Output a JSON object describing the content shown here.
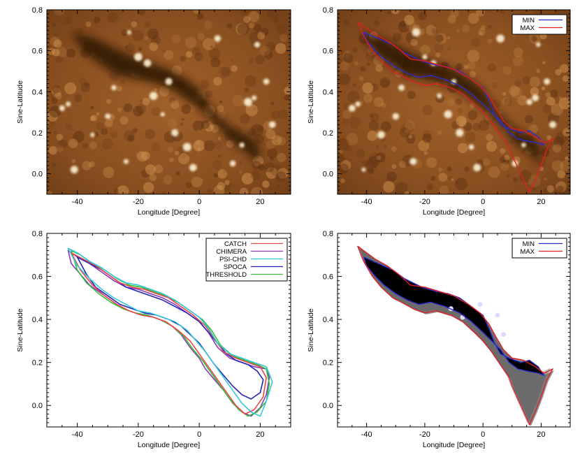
{
  "chart_data": [
    {
      "panel": "top-left",
      "type": "heatmap",
      "title": "",
      "xlabel": "Longitude [Degree]",
      "ylabel": "Sine-Latitude",
      "xlim": [
        -50,
        30
      ],
      "ylim": [
        -0.1,
        0.8
      ],
      "xticks": [
        -40,
        -20,
        0,
        20
      ],
      "xtick_labels": [
        "-40",
        "-20",
        "0",
        "20"
      ],
      "yticks": [
        0.0,
        0.2,
        0.4,
        0.6,
        0.8
      ],
      "ytick_labels": [
        "0.0",
        "0.2",
        "0.4",
        "0.6",
        "0.8"
      ],
      "colormap": "solar EUV (sdoaia193-like brown/orange)",
      "colors": {
        "dark": "#2a1305",
        "mid": "#8a5020",
        "bright": "#ffe7b8"
      },
      "legend": []
    },
    {
      "panel": "top-right",
      "type": "heatmap",
      "title": "",
      "xlabel": "Longitude [Degree]",
      "ylabel": "Sine-Latitude",
      "xlim": [
        -50,
        30
      ],
      "ylim": [
        -0.1,
        0.8
      ],
      "xticks": [
        -40,
        -20,
        0,
        20
      ],
      "xtick_labels": [
        "-40",
        "-20",
        "0",
        "20"
      ],
      "yticks": [
        0.0,
        0.2,
        0.4,
        0.6,
        0.8
      ],
      "ytick_labels": [
        "0.0",
        "0.2",
        "0.4",
        "0.6",
        "0.8"
      ],
      "legend_position": "top-right",
      "legend": [
        {
          "label": "MIN",
          "color": "#2b2bd0"
        },
        {
          "label": "MAX",
          "color": "#e02020"
        }
      ],
      "series": [
        {
          "name": "MIN",
          "color": "#2b2bd0",
          "x": [
            -41,
            -36,
            -31,
            -27,
            -21,
            -16,
            -12,
            -8,
            -4,
            0,
            2,
            4,
            6,
            9,
            13,
            16,
            19,
            21,
            19,
            15,
            12,
            9,
            6,
            3,
            0,
            -4,
            -8,
            -13,
            -18,
            -22,
            -26,
            -30,
            -34,
            -37,
            -40,
            -41
          ],
          "y": [
            0.69,
            0.66,
            0.63,
            0.59,
            0.55,
            0.53,
            0.52,
            0.5,
            0.46,
            0.42,
            0.36,
            0.29,
            0.24,
            0.22,
            0.2,
            0.21,
            0.18,
            0.14,
            0.15,
            0.16,
            0.17,
            0.2,
            0.26,
            0.3,
            0.34,
            0.39,
            0.43,
            0.46,
            0.48,
            0.47,
            0.49,
            0.52,
            0.56,
            0.6,
            0.65,
            0.69
          ]
        },
        {
          "name": "MAX",
          "color": "#e02020",
          "x": [
            -43,
            -40,
            -37,
            -33,
            -29,
            -25,
            -20,
            -15,
            -10,
            -5,
            -1,
            2,
            4,
            7,
            10,
            14,
            18,
            21,
            24,
            22,
            20,
            18,
            16,
            14,
            12,
            10,
            9,
            6,
            3,
            0,
            -3,
            -7,
            -11,
            -16,
            -20,
            -24,
            -28,
            -31,
            -35,
            -38,
            -41,
            -43
          ],
          "y": [
            0.74,
            0.71,
            0.68,
            0.65,
            0.61,
            0.56,
            0.55,
            0.53,
            0.51,
            0.47,
            0.43,
            0.38,
            0.33,
            0.26,
            0.22,
            0.21,
            0.18,
            0.15,
            0.17,
            0.12,
            0.04,
            -0.03,
            -0.09,
            -0.03,
            0.03,
            0.09,
            0.13,
            0.19,
            0.25,
            0.3,
            0.34,
            0.39,
            0.42,
            0.44,
            0.43,
            0.45,
            0.48,
            0.5,
            0.55,
            0.6,
            0.67,
            0.74
          ]
        }
      ]
    },
    {
      "panel": "bottom-left",
      "type": "line",
      "title": "",
      "xlabel": "Longitude [Degree]",
      "ylabel": "Sine-Latitude",
      "xlim": [
        -50,
        30
      ],
      "ylim": [
        -0.1,
        0.8
      ],
      "xticks": [
        -40,
        -20,
        0,
        20
      ],
      "xtick_labels": [
        "-40",
        "-20",
        "0",
        "20"
      ],
      "yticks": [
        0.0,
        0.2,
        0.4,
        0.6,
        0.8
      ],
      "ytick_labels": [
        "0.0",
        "0.2",
        "0.4",
        "0.6",
        "0.8"
      ],
      "legend_position": "top-right",
      "legend": [
        {
          "label": "CATCH",
          "color": "#e8474a"
        },
        {
          "label": "CHIMERA",
          "color": "#8a3ab8"
        },
        {
          "label": "PSI-CHD",
          "color": "#35c7d8"
        },
        {
          "label": "SPOCA",
          "color": "#2424b8"
        },
        {
          "label": "THRESHOLD",
          "color": "#35c035"
        }
      ],
      "series": [
        {
          "name": "CHIMERA",
          "color": "#8a3ab8",
          "x": [
            -43,
            -40,
            -36,
            -32,
            -28,
            -24,
            -20,
            -16,
            -12,
            -8,
            -4,
            0,
            3,
            6,
            10,
            14,
            18,
            22,
            23,
            22,
            20,
            17,
            14,
            11,
            8,
            5,
            2,
            0,
            -3,
            -6,
            -9,
            -13,
            -17,
            -21,
            -25,
            -28,
            -32,
            -36,
            -39,
            -42,
            -43
          ],
          "y": [
            0.72,
            0.69,
            0.66,
            0.62,
            0.58,
            0.55,
            0.54,
            0.52,
            0.5,
            0.47,
            0.43,
            0.39,
            0.34,
            0.27,
            0.22,
            0.2,
            0.18,
            0.17,
            0.13,
            0.05,
            -0.01,
            -0.05,
            -0.03,
            0.01,
            0.07,
            0.12,
            0.17,
            0.22,
            0.27,
            0.33,
            0.37,
            0.4,
            0.42,
            0.43,
            0.45,
            0.48,
            0.52,
            0.56,
            0.61,
            0.66,
            0.72
          ]
        },
        {
          "name": "SPOCA",
          "color": "#2424b8",
          "x": [
            -40,
            -36,
            -32,
            -28,
            -24,
            -20,
            -16,
            -12,
            -8,
            -4,
            0,
            3,
            6,
            9,
            12,
            16,
            19,
            21,
            20,
            17,
            14,
            11,
            8,
            5,
            2,
            0,
            -3,
            -6,
            -10,
            -14,
            -18,
            -22,
            -26,
            -30,
            -34,
            -37,
            -40
          ],
          "y": [
            0.69,
            0.66,
            0.63,
            0.59,
            0.55,
            0.53,
            0.51,
            0.49,
            0.46,
            0.43,
            0.39,
            0.34,
            0.29,
            0.24,
            0.21,
            0.19,
            0.16,
            0.12,
            0.06,
            0.03,
            0.05,
            0.09,
            0.14,
            0.19,
            0.25,
            0.29,
            0.33,
            0.37,
            0.4,
            0.42,
            0.43,
            0.45,
            0.47,
            0.51,
            0.55,
            0.61,
            0.69
          ]
        },
        {
          "name": "THRESHOLD",
          "color": "#35c035",
          "x": [
            -42,
            -39,
            -35,
            -31,
            -27,
            -23,
            -19,
            -15,
            -11,
            -7,
            -3,
            1,
            4,
            7,
            11,
            15,
            19,
            22,
            23,
            22,
            19,
            16,
            13,
            10,
            7,
            4,
            1,
            -2,
            -5,
            -9,
            -13,
            -17,
            -21,
            -25,
            -29,
            -33,
            -37,
            -40,
            -42
          ],
          "y": [
            0.72,
            0.7,
            0.66,
            0.63,
            0.59,
            0.56,
            0.55,
            0.53,
            0.51,
            0.48,
            0.44,
            0.4,
            0.35,
            0.28,
            0.23,
            0.21,
            0.19,
            0.17,
            0.1,
            0.02,
            -0.03,
            -0.05,
            -0.02,
            0.03,
            0.09,
            0.15,
            0.21,
            0.26,
            0.32,
            0.37,
            0.4,
            0.42,
            0.43,
            0.45,
            0.48,
            0.52,
            0.57,
            0.63,
            0.72
          ]
        },
        {
          "name": "CATCH",
          "color": "#e8474a",
          "x": [
            -42,
            -38,
            -34,
            -30,
            -26,
            -22,
            -18,
            -14,
            -10,
            -6,
            -2,
            2,
            5,
            8,
            12,
            16,
            20,
            22,
            21,
            18,
            15,
            12,
            9,
            6,
            3,
            0,
            -3,
            -7,
            -11,
            -15,
            -19,
            -23,
            -27,
            -31,
            -35,
            -39,
            -42
          ],
          "y": [
            0.71,
            0.68,
            0.65,
            0.61,
            0.57,
            0.55,
            0.54,
            0.52,
            0.5,
            0.46,
            0.42,
            0.37,
            0.31,
            0.25,
            0.22,
            0.2,
            0.18,
            0.13,
            0.04,
            -0.02,
            -0.04,
            0.0,
            0.06,
            0.12,
            0.18,
            0.24,
            0.3,
            0.35,
            0.39,
            0.41,
            0.42,
            0.44,
            0.47,
            0.51,
            0.56,
            0.63,
            0.71
          ]
        },
        {
          "name": "PSI-CHD",
          "color": "#35c7d8",
          "x": [
            -43,
            -40,
            -36,
            -32,
            -28,
            -24,
            -20,
            -16,
            -12,
            -8,
            -4,
            0,
            3,
            6,
            10,
            14,
            18,
            22,
            24,
            22,
            20,
            17,
            14,
            11,
            8,
            5,
            2,
            -1,
            -4,
            -8,
            -12,
            -16,
            -20,
            -24,
            -28,
            -32,
            -36,
            -40,
            -43
          ],
          "y": [
            0.73,
            0.71,
            0.67,
            0.64,
            0.6,
            0.57,
            0.56,
            0.54,
            0.52,
            0.49,
            0.45,
            0.41,
            0.36,
            0.29,
            0.24,
            0.22,
            0.2,
            0.18,
            0.11,
            0.02,
            -0.05,
            -0.03,
            0.01,
            0.07,
            0.13,
            0.19,
            0.25,
            0.3,
            0.35,
            0.39,
            0.41,
            0.43,
            0.44,
            0.47,
            0.5,
            0.54,
            0.59,
            0.65,
            0.73
          ]
        }
      ]
    },
    {
      "panel": "bottom-right",
      "type": "heatmap",
      "title": "",
      "xlabel": "Longitude [Degree]",
      "ylabel": "Sine-Latitude",
      "xlim": [
        -50,
        30
      ],
      "ylim": [
        -0.1,
        0.8
      ],
      "xticks": [
        -40,
        -20,
        0,
        20
      ],
      "xtick_labels": [
        "-40",
        "-20",
        "0",
        "20"
      ],
      "yticks": [
        0.0,
        0.2,
        0.4,
        0.6,
        0.8
      ],
      "ytick_labels": [
        "0.0",
        "0.2",
        "0.4",
        "0.6",
        "0.8"
      ],
      "colormap": "grayscale agreement map (black = all methods agree)",
      "colors": {
        "full": "#000000",
        "high": "#3a3a3a",
        "mid": "#8a8a8a",
        "low": "#c8c8c8"
      },
      "legend_position": "top-right",
      "legend": [
        {
          "label": "MIN",
          "color": "#2b2bd0"
        },
        {
          "label": "MAX",
          "color": "#e02020"
        }
      ],
      "series": [
        {
          "name": "MIN",
          "color": "#2b2bd0",
          "x": [
            -41,
            -36,
            -31,
            -27,
            -21,
            -16,
            -12,
            -8,
            -4,
            0,
            2,
            4,
            6,
            9,
            13,
            16,
            19,
            21,
            19,
            15,
            12,
            9,
            6,
            3,
            0,
            -4,
            -8,
            -13,
            -18,
            -22,
            -26,
            -30,
            -34,
            -37,
            -40,
            -41
          ],
          "y": [
            0.69,
            0.66,
            0.63,
            0.59,
            0.55,
            0.53,
            0.52,
            0.5,
            0.46,
            0.42,
            0.36,
            0.29,
            0.24,
            0.22,
            0.2,
            0.21,
            0.18,
            0.14,
            0.15,
            0.16,
            0.17,
            0.2,
            0.26,
            0.3,
            0.34,
            0.39,
            0.43,
            0.46,
            0.48,
            0.47,
            0.49,
            0.52,
            0.56,
            0.6,
            0.65,
            0.69
          ]
        },
        {
          "name": "MAX",
          "color": "#e02020",
          "x": [
            -43,
            -40,
            -37,
            -33,
            -29,
            -25,
            -20,
            -15,
            -10,
            -5,
            -1,
            2,
            4,
            7,
            10,
            14,
            18,
            21,
            24,
            22,
            20,
            18,
            16,
            14,
            12,
            10,
            9,
            6,
            3,
            0,
            -3,
            -7,
            -11,
            -16,
            -20,
            -24,
            -28,
            -31,
            -35,
            -38,
            -41,
            -43
          ],
          "y": [
            0.74,
            0.71,
            0.68,
            0.65,
            0.61,
            0.56,
            0.55,
            0.53,
            0.51,
            0.47,
            0.43,
            0.38,
            0.33,
            0.26,
            0.22,
            0.21,
            0.18,
            0.15,
            0.17,
            0.12,
            0.04,
            -0.03,
            -0.09,
            -0.03,
            0.03,
            0.09,
            0.13,
            0.19,
            0.25,
            0.3,
            0.34,
            0.39,
            0.42,
            0.44,
            0.43,
            0.45,
            0.48,
            0.5,
            0.55,
            0.6,
            0.67,
            0.74
          ]
        }
      ]
    }
  ]
}
